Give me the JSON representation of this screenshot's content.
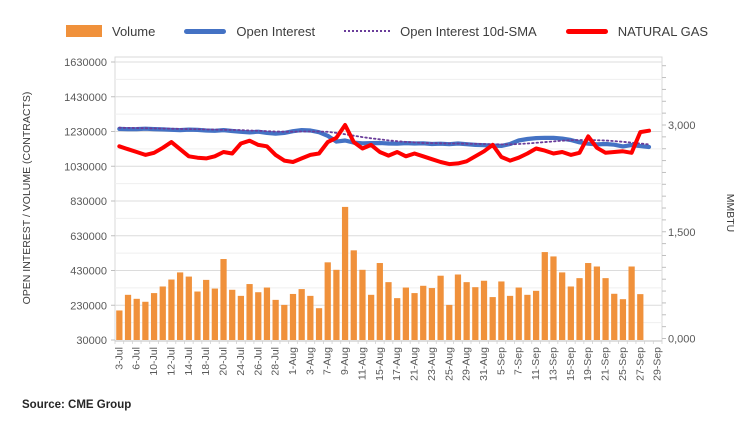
{
  "legend": {
    "items": [
      {
        "label": "Volume",
        "type": "bar-swatch",
        "color": "#F0913B"
      },
      {
        "label": "Open Interest",
        "type": "line-swatch",
        "color": "#4472C4"
      },
      {
        "label": "Open Interest 10d-SMA",
        "type": "dotted-swatch",
        "color": "#6A3D9A"
      },
      {
        "label": "NATURAL GAS",
        "type": "line-swatch",
        "color": "#FF0000"
      }
    ]
  },
  "source_note": "Source: CME Group",
  "chart_data": {
    "type": "combo-bar-line",
    "title": "",
    "y_axis_left": {
      "title": "OPEN INTEREST / VOLUME (CONTRACTS)",
      "min": 30000,
      "max": 1630000,
      "minor_step": 100000,
      "ticks": [
        {
          "label": "1630000",
          "value": 1630000
        },
        {
          "label": "1430000",
          "value": 1430000
        },
        {
          "label": "1230000",
          "value": 1230000
        },
        {
          "label": "1030000",
          "value": 1030000
        },
        {
          "label": "830000",
          "value": 830000
        },
        {
          "label": "630000",
          "value": 630000
        },
        {
          "label": "430000",
          "value": 430000
        },
        {
          "label": "230000",
          "value": 230000
        },
        {
          "label": "30000",
          "value": 30000
        }
      ]
    },
    "y_axis_right": {
      "title": "MMBTU",
      "min": 0,
      "max": 3,
      "ticks": [
        {
          "label": "3,000",
          "value": 3
        },
        {
          "label": "1,500",
          "value": 1.5
        },
        {
          "label": "0,000",
          "value": 0
        }
      ]
    },
    "x_axis": {
      "label_every": 2,
      "labels": [
        "3-Jul",
        "6-Jul",
        "10-Jul",
        "12-Jul",
        "14-Jul",
        "18-Jul",
        "20-Jul",
        "24-Jul",
        "26-Jul",
        "28-Jul",
        "1-Aug",
        "3-Aug",
        "7-Aug",
        "9-Aug",
        "11-Aug",
        "15-Aug",
        "17-Aug",
        "21-Aug",
        "23-Aug",
        "25-Aug",
        "29-Aug",
        "31-Aug",
        "5-Sep",
        "7-Sep",
        "11-Sep",
        "13-Sep",
        "15-Sep",
        "19-Sep",
        "21-Sep",
        "25-Sep",
        "27-Sep",
        "29-Sep"
      ]
    },
    "categories": [
      "3-Jul",
      "5-Jul",
      "6-Jul",
      "7-Jul",
      "10-Jul",
      "11-Jul",
      "12-Jul",
      "13-Jul",
      "14-Jul",
      "17-Jul",
      "18-Jul",
      "19-Jul",
      "20-Jul",
      "21-Jul",
      "24-Jul",
      "25-Jul",
      "26-Jul",
      "27-Jul",
      "28-Jul",
      "31-Jul",
      "1-Aug",
      "2-Aug",
      "3-Aug",
      "4-Aug",
      "7-Aug",
      "8-Aug",
      "9-Aug",
      "10-Aug",
      "11-Aug",
      "14-Aug",
      "15-Aug",
      "16-Aug",
      "17-Aug",
      "18-Aug",
      "21-Aug",
      "22-Aug",
      "23-Aug",
      "24-Aug",
      "25-Aug",
      "28-Aug",
      "29-Aug",
      "30-Aug",
      "31-Aug",
      "1-Sep",
      "5-Sep",
      "6-Sep",
      "7-Sep",
      "8-Sep",
      "11-Sep",
      "12-Sep",
      "13-Sep",
      "14-Sep",
      "15-Sep",
      "18-Sep",
      "19-Sep",
      "20-Sep",
      "21-Sep",
      "22-Sep",
      "25-Sep",
      "26-Sep",
      "27-Sep",
      "28-Sep",
      "29-Sep"
    ],
    "series": [
      {
        "name": "Volume",
        "type": "bar",
        "axis": "left",
        "color": "#F0913B",
        "values": [
          200000,
          290000,
          267000,
          250000,
          300000,
          338000,
          378000,
          419000,
          395000,
          309000,
          376000,
          326000,
          496000,
          319000,
          284000,
          352000,
          305000,
          332000,
          261000,
          232000,
          295000,
          323000,
          284000,
          213000,
          477000,
          434000,
          796000,
          546000,
          434000,
          290000,
          473000,
          363000,
          271000,
          332000,
          300000,
          342000,
          329000,
          400000,
          232000,
          407000,
          363000,
          334000,
          371000,
          277000,
          367000,
          284000,
          332000,
          290000,
          313000,
          536000,
          511000,
          419000,
          338000,
          386000,
          473000,
          453000,
          386000,
          296000,
          265000,
          453000,
          294000,
          null,
          null
        ]
      },
      {
        "name": "Open Interest",
        "type": "line",
        "axis": "left",
        "color": "#4472C4",
        "stroke_width": 4.2,
        "values": [
          1245000,
          1243000,
          1244000,
          1246000,
          1244000,
          1242000,
          1240000,
          1238000,
          1241000,
          1239000,
          1236000,
          1234000,
          1238000,
          1233000,
          1228000,
          1225000,
          1229000,
          1222000,
          1218000,
          1222000,
          1232000,
          1238000,
          1236000,
          1226000,
          1205000,
          1172000,
          1178000,
          1166000,
          1162000,
          1163000,
          1164000,
          1161000,
          1160000,
          1163000,
          1161000,
          1162000,
          1158000,
          1160000,
          1157000,
          1161000,
          1157000,
          1153000,
          1151000,
          1149000,
          1147000,
          1158000,
          1178000,
          1187000,
          1192000,
          1194000,
          1193000,
          1189000,
          1181000,
          1168000,
          1160000,
          1156000,
          1158000,
          1154000,
          1144000,
          1152000,
          1146000,
          1141000,
          null
        ]
      },
      {
        "name": "Open Interest 10d-SMA",
        "type": "line",
        "style": "dotted",
        "axis": "left",
        "color": "#6A3D9A",
        "stroke_width": 1.8,
        "values": [
          1252000,
          1251000,
          1250000,
          1249000,
          1248000,
          1247000,
          1246000,
          1245000,
          1244000,
          1243000,
          1242000,
          1241000,
          1240000,
          1239000,
          1238000,
          1236000,
          1234000,
          1232000,
          1230000,
          1229000,
          1229000,
          1230000,
          1230000,
          1230000,
          1228000,
          1222000,
          1214000,
          1206000,
          1198000,
          1191000,
          1185000,
          1179000,
          1174000,
          1170000,
          1167000,
          1164000,
          1163000,
          1162000,
          1161000,
          1161000,
          1160000,
          1159000,
          1158000,
          1157000,
          1156000,
          1156000,
          1158000,
          1161000,
          1165000,
          1169000,
          1173000,
          1177000,
          1180000,
          1181000,
          1181000,
          1180000,
          1178000,
          1175000,
          1171000,
          1166000,
          1161000,
          1156000,
          null
        ]
      },
      {
        "name": "NATURAL GAS",
        "type": "line",
        "axis": "right",
        "color": "#FF0000",
        "stroke_width": 4,
        "values": [
          2.7,
          2.66,
          2.62,
          2.58,
          2.61,
          2.68,
          2.76,
          2.66,
          2.56,
          2.54,
          2.53,
          2.56,
          2.62,
          2.6,
          2.74,
          2.78,
          2.72,
          2.7,
          2.58,
          2.5,
          2.48,
          2.53,
          2.58,
          2.6,
          2.76,
          2.82,
          3.0,
          2.76,
          2.67,
          2.72,
          2.62,
          2.57,
          2.62,
          2.56,
          2.6,
          2.56,
          2.52,
          2.48,
          2.45,
          2.46,
          2.49,
          2.56,
          2.63,
          2.72,
          2.55,
          2.5,
          2.54,
          2.6,
          2.67,
          2.64,
          2.6,
          2.62,
          2.58,
          2.61,
          2.84,
          2.68,
          2.61,
          2.62,
          2.63,
          2.61,
          2.9,
          2.92,
          null
        ]
      }
    ],
    "layout": {
      "grid": true,
      "legend_position": "top",
      "x_labels_rotated": true
    }
  }
}
